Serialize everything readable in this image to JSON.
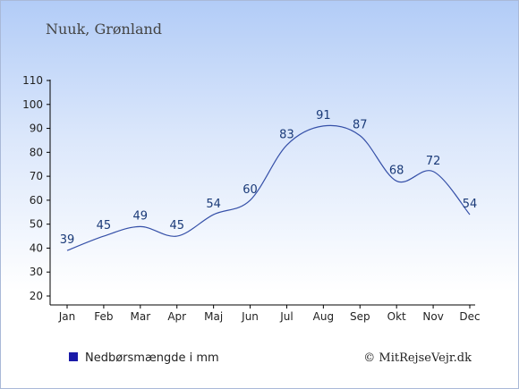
{
  "header": {
    "location": "Nuuk, Grønland"
  },
  "legend": {
    "label": "Nedbørsmængde i mm",
    "swatch_color": "#1a1aa8"
  },
  "credit": {
    "text": "© MitRejseVejr.dk"
  },
  "colors": {
    "line": "#3550a8",
    "axis": "#000000",
    "label": "#1a3a78"
  },
  "chart_data": {
    "type": "line",
    "categories": [
      "Jan",
      "Feb",
      "Mar",
      "Apr",
      "Maj",
      "Jun",
      "Jul",
      "Aug",
      "Sep",
      "Okt",
      "Nov",
      "Dec"
    ],
    "series": [
      {
        "name": "Nedbørsmængde i mm",
        "values": [
          39,
          45,
          49,
          45,
          54,
          60,
          83,
          91,
          87,
          68,
          72,
          54
        ]
      }
    ],
    "ylim": [
      20,
      110
    ],
    "yticks": [
      20,
      30,
      40,
      50,
      60,
      70,
      80,
      90,
      100,
      110
    ],
    "grid": false,
    "legend_position": "bottom-left"
  }
}
